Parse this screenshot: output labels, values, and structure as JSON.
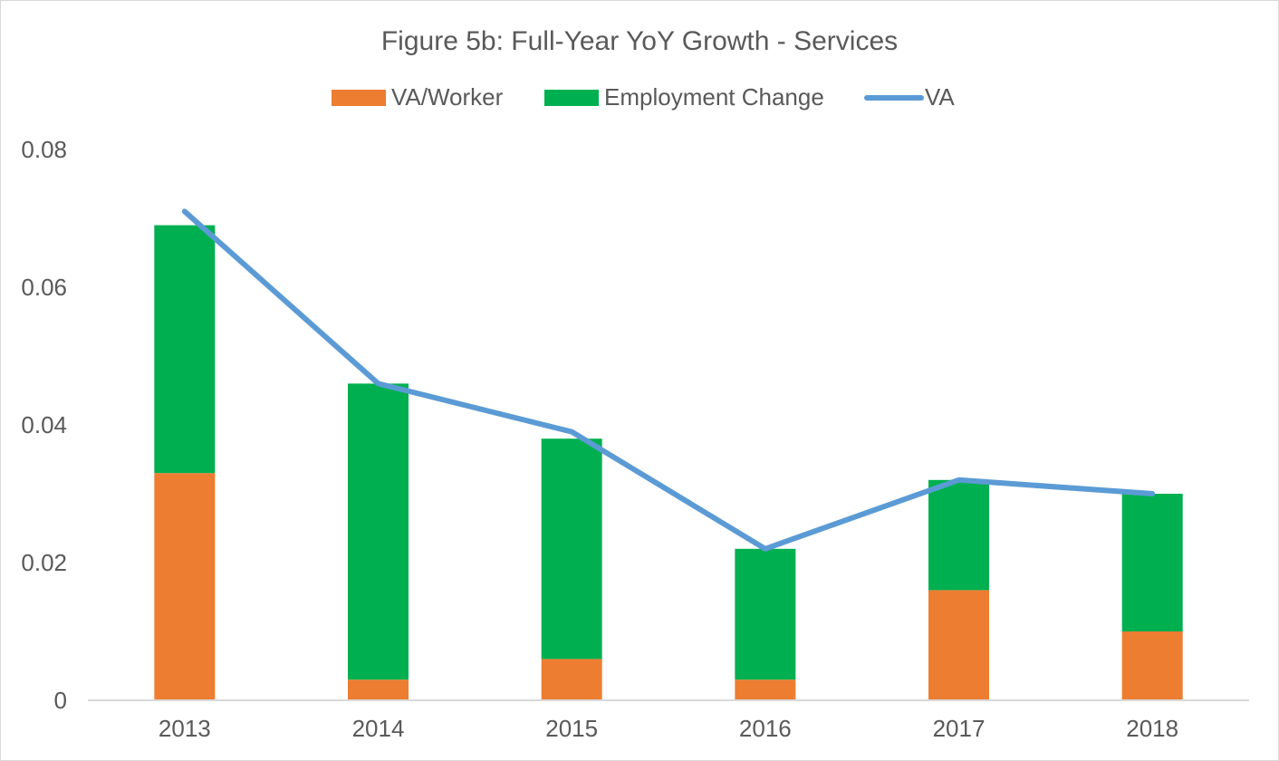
{
  "chart_data": {
    "type": "bar",
    "stacked": true,
    "title": "Figure 5b: Full-Year YoY Growth - Services",
    "categories": [
      "2013",
      "2014",
      "2015",
      "2016",
      "2017",
      "2018"
    ],
    "series": [
      {
        "name": "VA/Worker",
        "kind": "bar",
        "color": "#ED7D31",
        "values": [
          0.033,
          0.003,
          0.006,
          0.003,
          0.016,
          0.01
        ]
      },
      {
        "name": "Employment Change",
        "kind": "bar",
        "color": "#00B050",
        "values": [
          0.036,
          0.043,
          0.032,
          0.019,
          0.016,
          0.02
        ]
      },
      {
        "name": "VA",
        "kind": "line",
        "color": "#5B9BD5",
        "values": [
          0.071,
          0.046,
          0.039,
          0.022,
          0.032,
          0.03
        ]
      }
    ],
    "ylim": [
      0,
      0.08
    ],
    "y_ticks": [
      "0",
      "0.02",
      "0.04",
      "0.06",
      "0.08"
    ],
    "grid": false,
    "legend_position": "top"
  }
}
